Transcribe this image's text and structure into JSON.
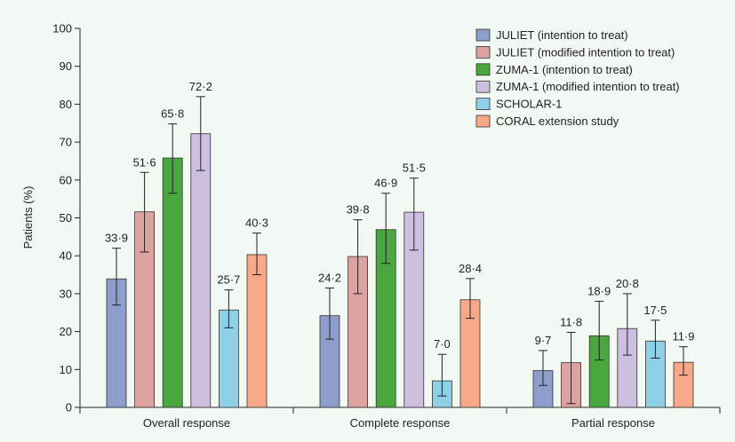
{
  "chart_data": {
    "type": "bar",
    "ylabel": "Patients (%)",
    "ylim": [
      0,
      100
    ],
    "yticks": [
      0,
      10,
      20,
      30,
      40,
      50,
      60,
      70,
      80,
      90,
      100
    ],
    "categories": [
      "Overall response",
      "Complete response",
      "Partial response"
    ],
    "legend_position": "top-right",
    "grid": false,
    "series": [
      {
        "name": "JULIET (intention to treat)",
        "color": "#8d9dcc",
        "values": [
          33.9,
          24.2,
          9.7
        ],
        "labels": [
          "33·9",
          "24·2",
          "9·7"
        ],
        "err_low": [
          27.0,
          18.0,
          5.8
        ],
        "err_high": [
          42.0,
          31.5,
          15.0
        ]
      },
      {
        "name": "JULIET (modified intention to treat)",
        "color": "#dca3a1",
        "values": [
          51.6,
          39.8,
          11.8
        ],
        "labels": [
          "51·6",
          "39·8",
          "11·8"
        ],
        "err_low": [
          41.0,
          30.0,
          1.0
        ],
        "err_high": [
          62.0,
          49.5,
          19.8
        ]
      },
      {
        "name": "ZUMA-1 (intention to treat)",
        "color": "#4aa63f",
        "values": [
          65.8,
          46.9,
          18.9
        ],
        "labels": [
          "65·8",
          "46·9",
          "18·9"
        ],
        "err_low": [
          56.5,
          38.0,
          12.5
        ],
        "err_high": [
          74.8,
          56.5,
          28.0
        ]
      },
      {
        "name": "ZUMA-1 (modified intention to treat)",
        "color": "#cdbfe0",
        "values": [
          72.2,
          51.5,
          20.8
        ],
        "labels": [
          "72·2",
          "51·5",
          "20·8"
        ],
        "err_low": [
          62.5,
          41.5,
          13.8
        ],
        "err_high": [
          82.0,
          60.5,
          30.0
        ]
      },
      {
        "name": "SCHOLAR-1",
        "color": "#8fd0e6",
        "values": [
          25.7,
          7.0,
          17.5
        ],
        "labels": [
          "25·7",
          "7·0",
          "17·5"
        ],
        "err_low": [
          21.0,
          3.0,
          13.0
        ],
        "err_high": [
          31.0,
          14.0,
          23.0
        ]
      },
      {
        "name": "CORAL extension study",
        "color": "#f6a889",
        "values": [
          40.3,
          28.4,
          11.9
        ],
        "labels": [
          "40·3",
          "28·4",
          "11·9"
        ],
        "err_low": [
          35.0,
          23.5,
          8.5
        ],
        "err_high": [
          46.0,
          34.0,
          16.0
        ]
      }
    ]
  }
}
